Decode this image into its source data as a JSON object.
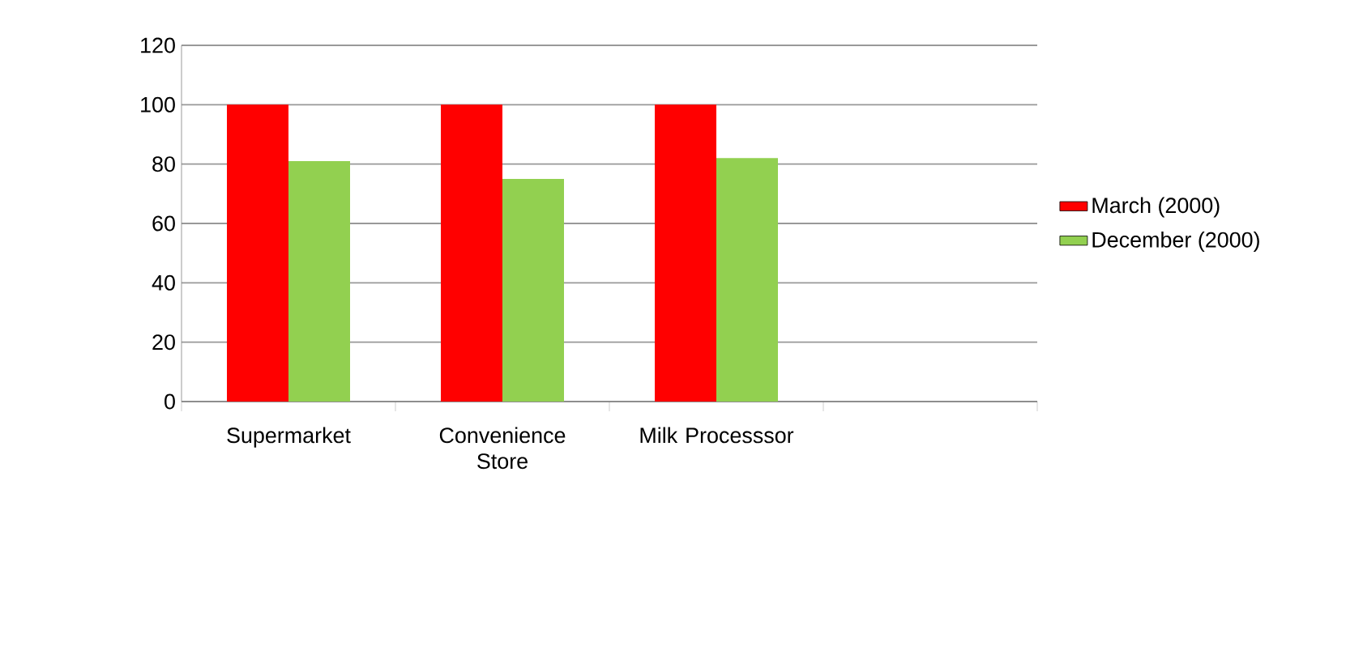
{
  "chart_data": {
    "type": "bar",
    "categories": [
      "Supermarket",
      "Convenience Store",
      "Milk Processsor",
      null
    ],
    "series": [
      {
        "name": "March (2000)",
        "color": "#ff0000",
        "values": [
          100,
          100,
          100,
          null
        ]
      },
      {
        "name": "December (2000)",
        "color": "#92d050",
        "values": [
          81,
          75,
          82,
          null
        ]
      }
    ],
    "ylim": [
      0,
      120
    ],
    "yticks": [
      0,
      20,
      40,
      60,
      80,
      100,
      120
    ],
    "grid": "y",
    "legend": "right"
  }
}
